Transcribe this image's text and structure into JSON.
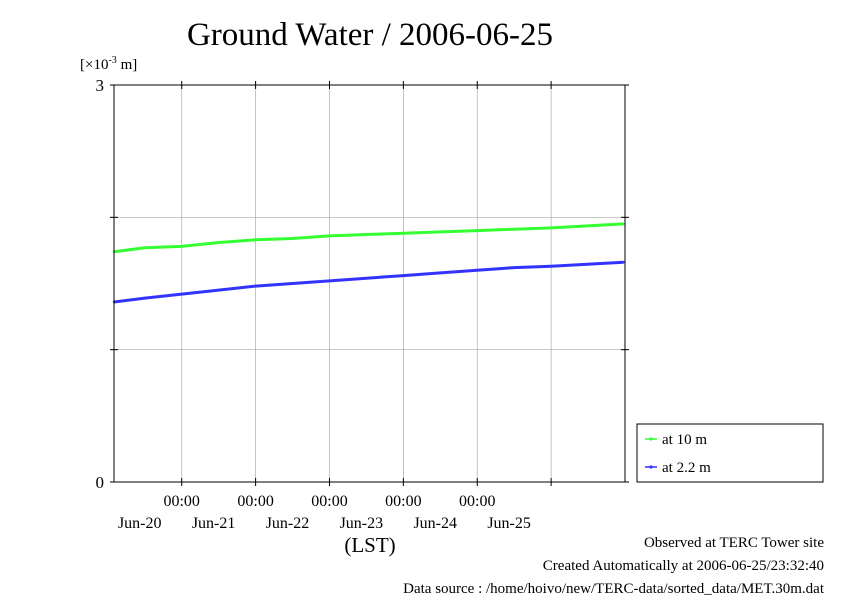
{
  "chart_data": {
    "type": "line",
    "title": "Ground Water / 2006-06-25",
    "ylabel": "[×10",
    "ylabel_exp": "-3",
    "ylabel_unit": " m]",
    "xlabel": "(LST)",
    "ylim": [
      0,
      3
    ],
    "y_ticks": [
      {
        "value": 3,
        "label": "3"
      },
      {
        "value": 2,
        "label": ""
      },
      {
        "value": 1,
        "label": ""
      },
      {
        "value": 0,
        "label": "0"
      }
    ],
    "x_range_days": [
      "2006-06-19 02:00",
      "2006-06-26 00:00"
    ],
    "x_ticks": [
      {
        "time": "2006-06-20 00:00",
        "label_top": "00:00",
        "label_bottom": "Jun-20"
      },
      {
        "time": "2006-06-21 00:00",
        "label_top": "00:00",
        "label_bottom": "Jun-21"
      },
      {
        "time": "2006-06-22 00:00",
        "label_top": "00:00",
        "label_bottom": "Jun-22"
      },
      {
        "time": "2006-06-23 00:00",
        "label_top": "00:00",
        "label_bottom": "Jun-23"
      },
      {
        "time": "2006-06-24 00:00",
        "label_top": "00:00",
        "label_bottom": "Jun-24"
      },
      {
        "time": "2006-06-25 00:00",
        "label_top": "",
        "label_bottom": "Jun-25"
      }
    ],
    "grid": true,
    "legend_position": "right-bottom",
    "series": [
      {
        "name": "at 10 m",
        "color": "#33ff33",
        "x": [
          "2006-06-19 02:00",
          "2006-06-19 12:00",
          "2006-06-20 00:00",
          "2006-06-20 12:00",
          "2006-06-21 00:00",
          "2006-06-21 12:00",
          "2006-06-22 00:00",
          "2006-06-22 12:00",
          "2006-06-23 00:00",
          "2006-06-23 12:00",
          "2006-06-24 00:00",
          "2006-06-24 12:00",
          "2006-06-25 00:00",
          "2006-06-25 23:30"
        ],
        "values": [
          1.74,
          1.77,
          1.78,
          1.81,
          1.83,
          1.84,
          1.86,
          1.87,
          1.88,
          1.89,
          1.9,
          1.91,
          1.92,
          1.95
        ]
      },
      {
        "name": "at 2.2 m",
        "color": "#3333ff",
        "x": [
          "2006-06-19 02:00",
          "2006-06-19 12:00",
          "2006-06-20 00:00",
          "2006-06-20 12:00",
          "2006-06-21 00:00",
          "2006-06-21 12:00",
          "2006-06-22 00:00",
          "2006-06-22 12:00",
          "2006-06-23 00:00",
          "2006-06-23 12:00",
          "2006-06-24 00:00",
          "2006-06-24 12:00",
          "2006-06-25 00:00",
          "2006-06-25 23:30"
        ],
        "values": [
          1.36,
          1.39,
          1.42,
          1.45,
          1.48,
          1.5,
          1.52,
          1.54,
          1.56,
          1.58,
          1.6,
          1.62,
          1.63,
          1.66
        ]
      }
    ]
  },
  "footer": {
    "line1": "Observed at TERC Tower site",
    "line2": "Created Automatically at 2006-06-25/23:32:40",
    "line3": "Data source : /home/hoivo/new/TERC-data/sorted_data/MET.30m.dat"
  }
}
